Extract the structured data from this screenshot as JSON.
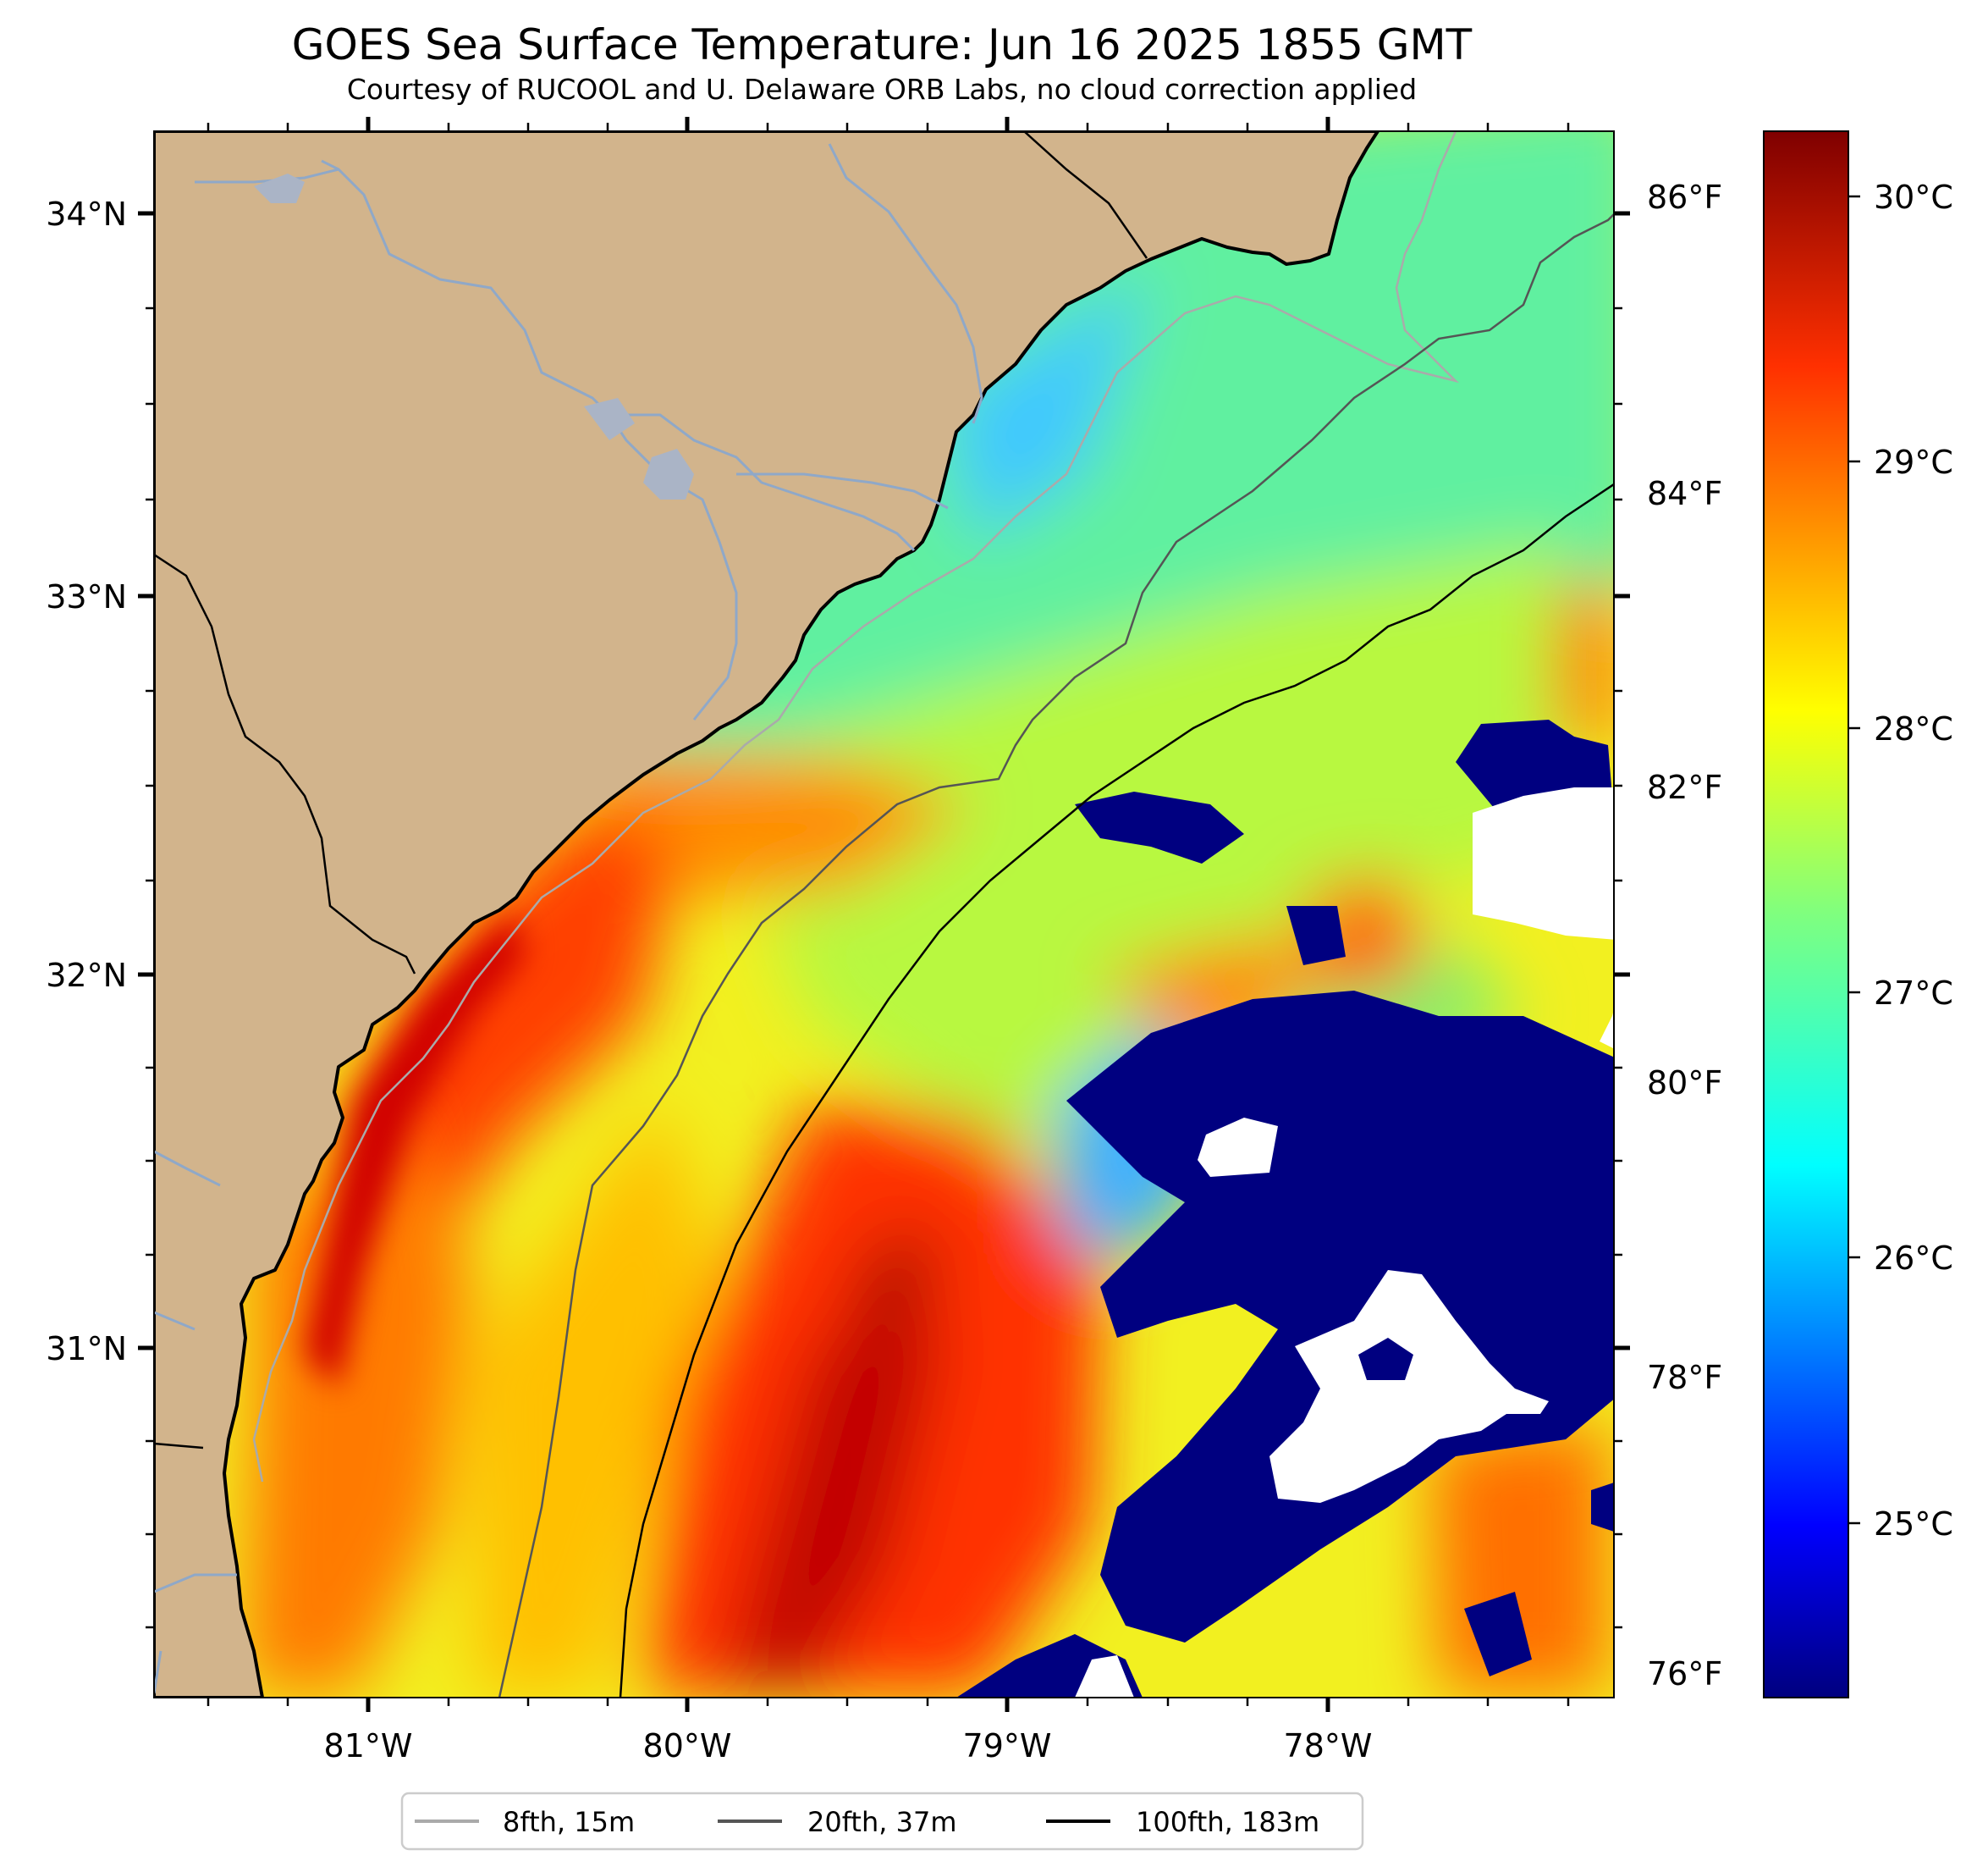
{
  "title": "GOES Sea Surface Temperature: Jun 16 2025 1855 GMT",
  "subtitle": "Courtesy of RUCOOL and U. Delaware ORB Labs, no cloud correction applied",
  "axes": {
    "lon_ticks": [
      "81°W",
      "80°W",
      "79°W",
      "78°W"
    ],
    "lat_ticks": [
      "34°N",
      "33°N",
      "32°N",
      "31°N"
    ],
    "f_ticks": [
      "86°F",
      "84°F",
      "82°F",
      "80°F",
      "78°F",
      "76°F"
    ]
  },
  "colorbar": {
    "labels": [
      "30°C",
      "29°C",
      "28°C",
      "27°C",
      "26°C",
      "25°C"
    ],
    "colormap": "jet",
    "stops": [
      "#00007f",
      "#0000ff",
      "#007fff",
      "#00ffff",
      "#7fff7f",
      "#ffff00",
      "#ff7f00",
      "#ff0000",
      "#7f0000"
    ]
  },
  "legend": {
    "items": [
      {
        "label": "8fth, 15m",
        "color": "#aaaaaa"
      },
      {
        "label": "20fth, 37m",
        "color": "#555555"
      },
      {
        "label": "100fth, 183m",
        "color": "#000000"
      }
    ]
  },
  "colors": {
    "land": "#d2b48c",
    "river": "#8fa8c8",
    "cloud_mask": "#000080",
    "no_data": "#ffffff"
  }
}
